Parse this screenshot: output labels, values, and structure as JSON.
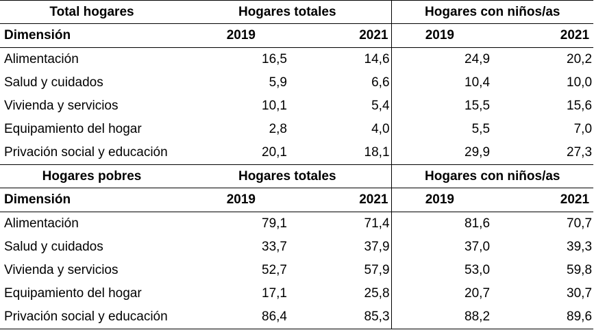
{
  "sections": [
    {
      "label": "Total hogares",
      "group1": "Hogares totales",
      "group2": "Hogares con niños/as",
      "dimension_label": "Dimensión",
      "years": [
        "2019",
        "2021",
        "2019",
        "2021"
      ],
      "rows": [
        {
          "label": "Alimentación",
          "values": [
            "16,5",
            "14,6",
            "24,9",
            "20,2"
          ]
        },
        {
          "label": "Salud y cuidados",
          "values": [
            "5,9",
            "6,6",
            "10,4",
            "10,0"
          ]
        },
        {
          "label": "Vivienda y servicios",
          "values": [
            "10,1",
            "5,4",
            "15,5",
            "15,6"
          ]
        },
        {
          "label": "Equipamiento del hogar",
          "values": [
            "2,8",
            "4,0",
            "5,5",
            "7,0"
          ]
        },
        {
          "label": "Privación social y educación",
          "values": [
            "20,1",
            "18,1",
            "29,9",
            "27,3"
          ]
        }
      ]
    },
    {
      "label": "Hogares pobres",
      "group1": "Hogares totales",
      "group2": "Hogares con niños/as",
      "dimension_label": "Dimensión",
      "years": [
        "2019",
        "2021",
        "2019",
        "2021"
      ],
      "rows": [
        {
          "label": "Alimentación",
          "values": [
            "79,1",
            "71,4",
            "81,6",
            "70,7"
          ]
        },
        {
          "label": "Salud y cuidados",
          "values": [
            "33,7",
            "37,9",
            "37,0",
            "39,3"
          ]
        },
        {
          "label": "Vivienda y servicios",
          "values": [
            "52,7",
            "57,9",
            "53,0",
            "59,8"
          ]
        },
        {
          "label": "Equipamiento del hogar",
          "values": [
            "17,1",
            "25,8",
            "20,7",
            "30,7"
          ]
        },
        {
          "label": "Privación social y educación",
          "values": [
            "86,4",
            "85,3",
            "88,2",
            "89,6"
          ]
        }
      ]
    }
  ]
}
